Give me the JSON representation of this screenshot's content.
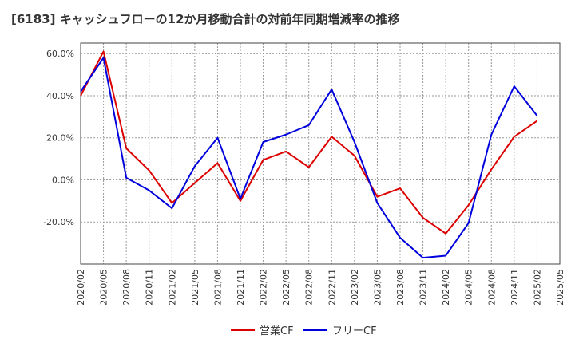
{
  "title": "[6183]  キャッシュフローの12か月移動合計の対前年同期増減率の推移",
  "chart_data": {
    "type": "line",
    "x": [
      "2020/02",
      "2020/05",
      "2020/08",
      "2020/11",
      "2021/02",
      "2021/05",
      "2021/08",
      "2021/11",
      "2022/02",
      "2022/05",
      "2022/08",
      "2022/11",
      "2023/02",
      "2023/05",
      "2023/08",
      "2023/11",
      "2024/02",
      "2024/05",
      "2024/08",
      "2024/11",
      "2025/02",
      "2025/05"
    ],
    "ylim": [
      -40,
      65
    ],
    "yticks": [
      -20,
      0,
      20,
      40,
      60
    ],
    "ytick_labels": [
      "-20.0%",
      "0.0%",
      "20.0%",
      "40.0%",
      "60.0%"
    ],
    "grid": true,
    "legend_position": "bottom",
    "series": [
      {
        "name": "営業CF",
        "color": "#dd0000",
        "values": [
          40.0,
          61.0,
          15.0,
          4.5,
          -11.0,
          -1.5,
          8.0,
          -10.0,
          9.5,
          13.5,
          6.0,
          20.5,
          11.5,
          -8.0,
          -4.0,
          -18.0,
          -25.5,
          -12.0,
          5.0,
          20.5,
          28.0,
          null
        ]
      },
      {
        "name": "フリーCF",
        "color": "#0000dd",
        "values": [
          42.0,
          58.0,
          1.0,
          -5.0,
          -13.5,
          6.5,
          20.0,
          -9.0,
          18.0,
          21.5,
          26.0,
          43.0,
          18.0,
          -11.0,
          -27.5,
          -37.0,
          -36.0,
          -20.5,
          21.5,
          44.5,
          30.5,
          null
        ]
      }
    ]
  }
}
